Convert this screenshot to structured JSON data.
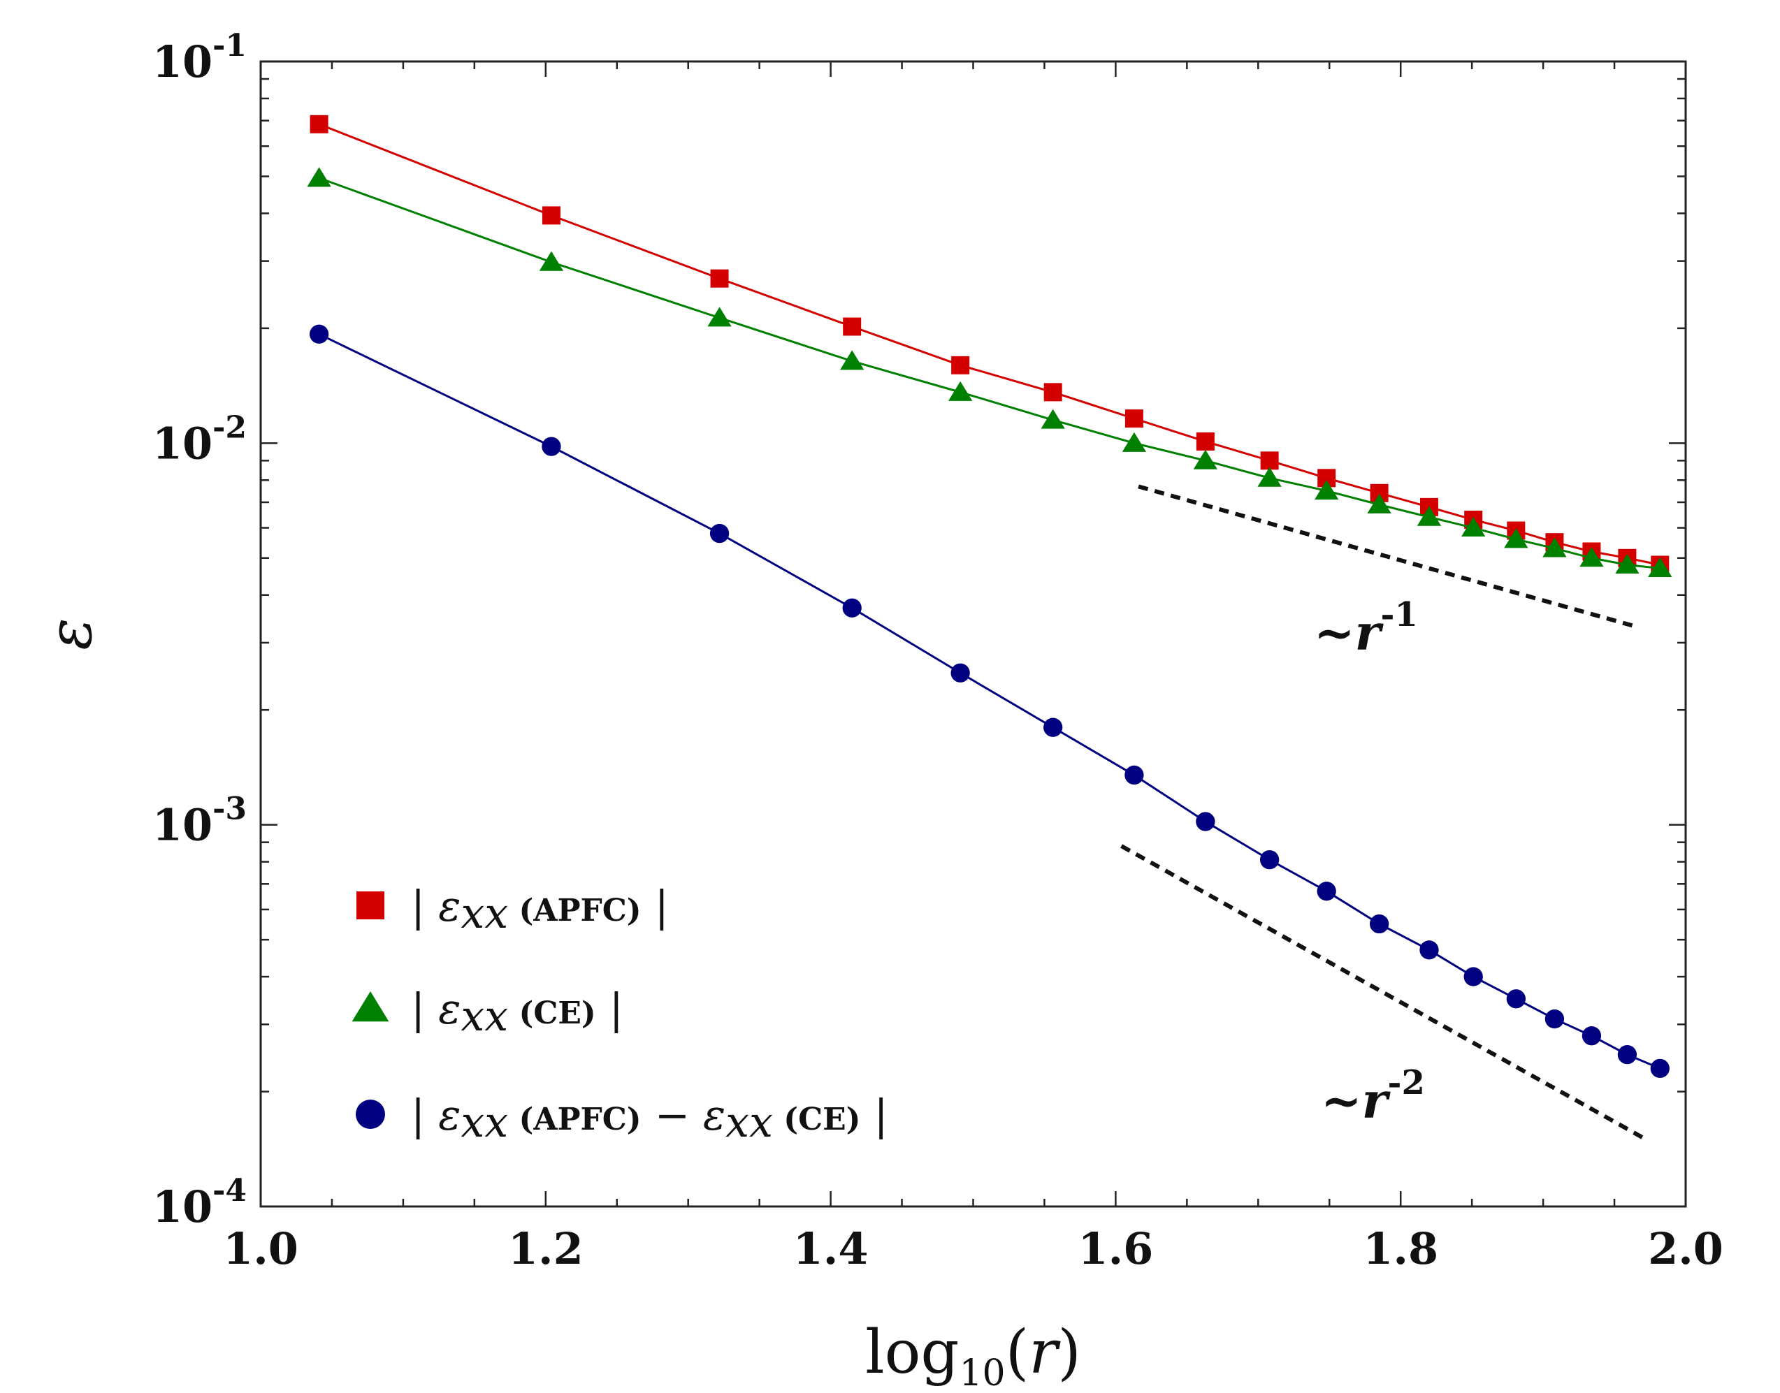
{
  "chart_data": {
    "type": "line",
    "title": "",
    "xlabel": "log10(r)",
    "ylabel": "ε",
    "yscale": "log",
    "xlim": [
      1.0,
      2.0
    ],
    "ylim": [
      0.0001,
      0.1
    ],
    "grid": false,
    "legend_position": "bottom-left",
    "x_ticks": [
      "1.0",
      "1.2",
      "1.4",
      "1.6",
      "1.8",
      "2.0"
    ],
    "y_ticks": [
      {
        "base": "10",
        "exp": "-1",
        "value": 0.1
      },
      {
        "base": "10",
        "exp": "-2",
        "value": 0.01
      },
      {
        "base": "10",
        "exp": "-3",
        "value": 0.001
      },
      {
        "base": "10",
        "exp": "-4",
        "value": 0.0001
      }
    ],
    "x": [
      1.041,
      1.204,
      1.322,
      1.415,
      1.491,
      1.556,
      1.613,
      1.663,
      1.708,
      1.748,
      1.785,
      1.82,
      1.851,
      1.881,
      1.908,
      1.934,
      1.959,
      1.982
    ],
    "series": [
      {
        "name": "|ε_xx (APFC)|",
        "text_prefix": "|",
        "symbol": "ε",
        "subscript": "xx",
        "tag": "(APFC)",
        "text_suffix": "|",
        "color": "#d40000",
        "marker": "square",
        "values": [
          0.0685,
          0.0395,
          0.027,
          0.0202,
          0.016,
          0.0136,
          0.0116,
          0.0101,
          0.009,
          0.0081,
          0.0074,
          0.0068,
          0.0063,
          0.0059,
          0.0055,
          0.0052,
          0.005,
          0.0048
        ]
      },
      {
        "name": "|ε_xx (CE)|",
        "text_prefix": "|",
        "symbol": "ε",
        "subscript": "xx",
        "tag": "(CE)",
        "text_suffix": "|",
        "color": "#008000",
        "marker": "triangle",
        "values": [
          0.0495,
          0.0298,
          0.0213,
          0.0164,
          0.0136,
          0.0115,
          0.01,
          0.009,
          0.0081,
          0.0075,
          0.0069,
          0.0064,
          0.006,
          0.0056,
          0.0053,
          0.005,
          0.0048,
          0.0047
        ]
      },
      {
        "name": "|ε_xx (APFC) − ε_xx (CE)|",
        "text_prefix": "|",
        "symbol": "ε",
        "subscript": "xx",
        "tag": "(APFC)",
        "operator": "−",
        "symbol2": "ε",
        "subscript2": "xx",
        "tag2": "(CE)",
        "text_suffix": "|",
        "color": "#000080",
        "marker": "circle",
        "values": [
          0.0193,
          0.0098,
          0.0058,
          0.0037,
          0.0025,
          0.0018,
          0.00135,
          0.00102,
          0.00081,
          0.00067,
          0.00055,
          0.00047,
          0.0004,
          0.00035,
          0.00031,
          0.00028,
          0.00025,
          0.00023
        ]
      }
    ],
    "reference_lines": [
      {
        "name": "slope -1",
        "label_prefix": "~",
        "label_var": "r",
        "label_exp": "-1",
        "x": [
          1.616,
          1.966
        ],
        "y": [
          0.0077,
          0.0033
        ]
      },
      {
        "name": "slope -2",
        "label_prefix": "~",
        "label_var": "r",
        "label_exp": "-2",
        "x": [
          1.604,
          1.972
        ],
        "y": [
          0.00088,
          0.00015
        ]
      }
    ],
    "xlabel_parts": {
      "func": "log",
      "sub": "10",
      "open": "(",
      "var": "r",
      "close": ")"
    }
  }
}
